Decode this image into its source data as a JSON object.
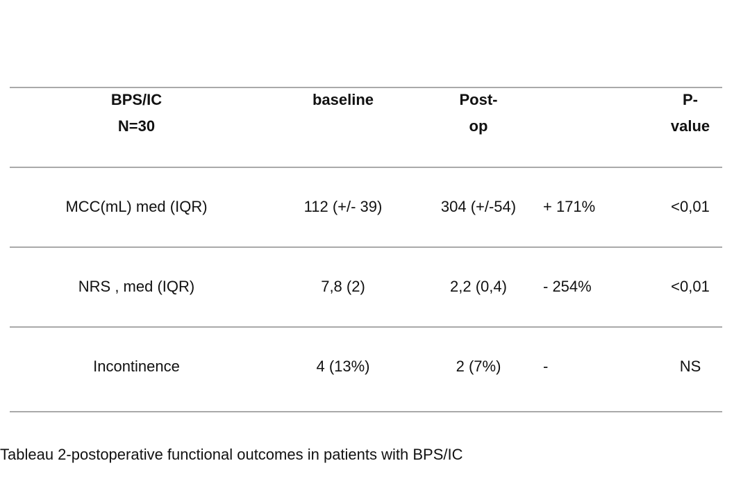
{
  "table": {
    "headers": {
      "col1_line1": "BPS/IC",
      "col1_line2": "N=30",
      "col2": "baseline",
      "col3_line1": "Post-",
      "col3_line2": "op",
      "col4": "",
      "col5_line1": "P-",
      "col5_line2": "value"
    },
    "rows": [
      {
        "label": "MCC(mL) med (IQR)",
        "baseline": "112 (+/- 39)",
        "postop": "304 (+/-54)",
        "change": "+ 171%",
        "pvalue": "<0,01"
      },
      {
        "label": "NRS , med (IQR)",
        "baseline": "7,8 (2)",
        "postop": "2,2 (0,4)",
        "change": "- 254%",
        "pvalue": "<0,01"
      },
      {
        "label": "Incontinence",
        "baseline": "4 (13%)",
        "postop": "2 (7%)",
        "change": "-",
        "pvalue": "NS"
      }
    ]
  },
  "caption": "Tableau 2-postoperative functional outcomes in patients with BPS/IC"
}
